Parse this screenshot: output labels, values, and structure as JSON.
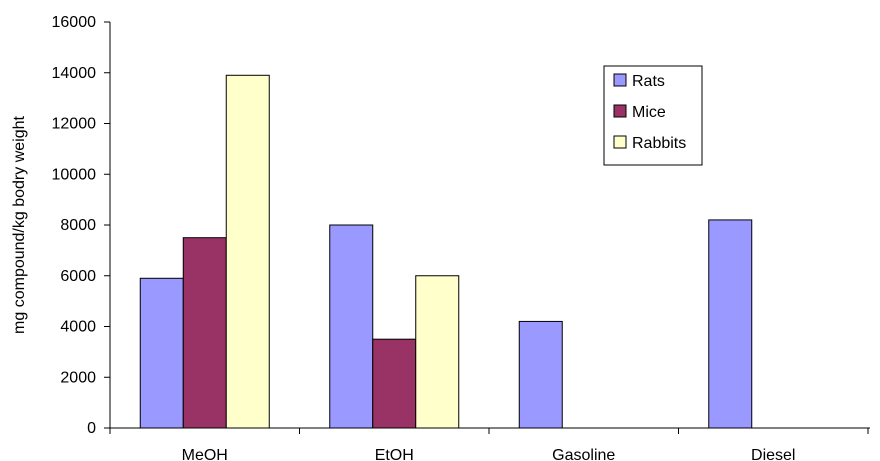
{
  "chart_data": {
    "type": "bar",
    "title": "",
    "xlabel": "",
    "ylabel": "mg compound/kg bodry weight",
    "categories": [
      "MeOH",
      "EtOH",
      "Gasoline",
      "Diesel"
    ],
    "series": [
      {
        "name": "Rats",
        "values": [
          5900,
          8000,
          4200,
          8200
        ],
        "color": "#9999ff"
      },
      {
        "name": "Mice",
        "values": [
          7500,
          3500,
          null,
          null
        ],
        "color": "#993366"
      },
      {
        "name": "Rabbits",
        "values": [
          13900,
          6000,
          null,
          null
        ],
        "color": "#ffffcc"
      }
    ],
    "ylim": [
      0,
      16000
    ],
    "yticks": [
      0,
      2000,
      4000,
      6000,
      8000,
      10000,
      12000,
      14000,
      16000
    ],
    "grid": false,
    "legend_position": "top-right"
  }
}
